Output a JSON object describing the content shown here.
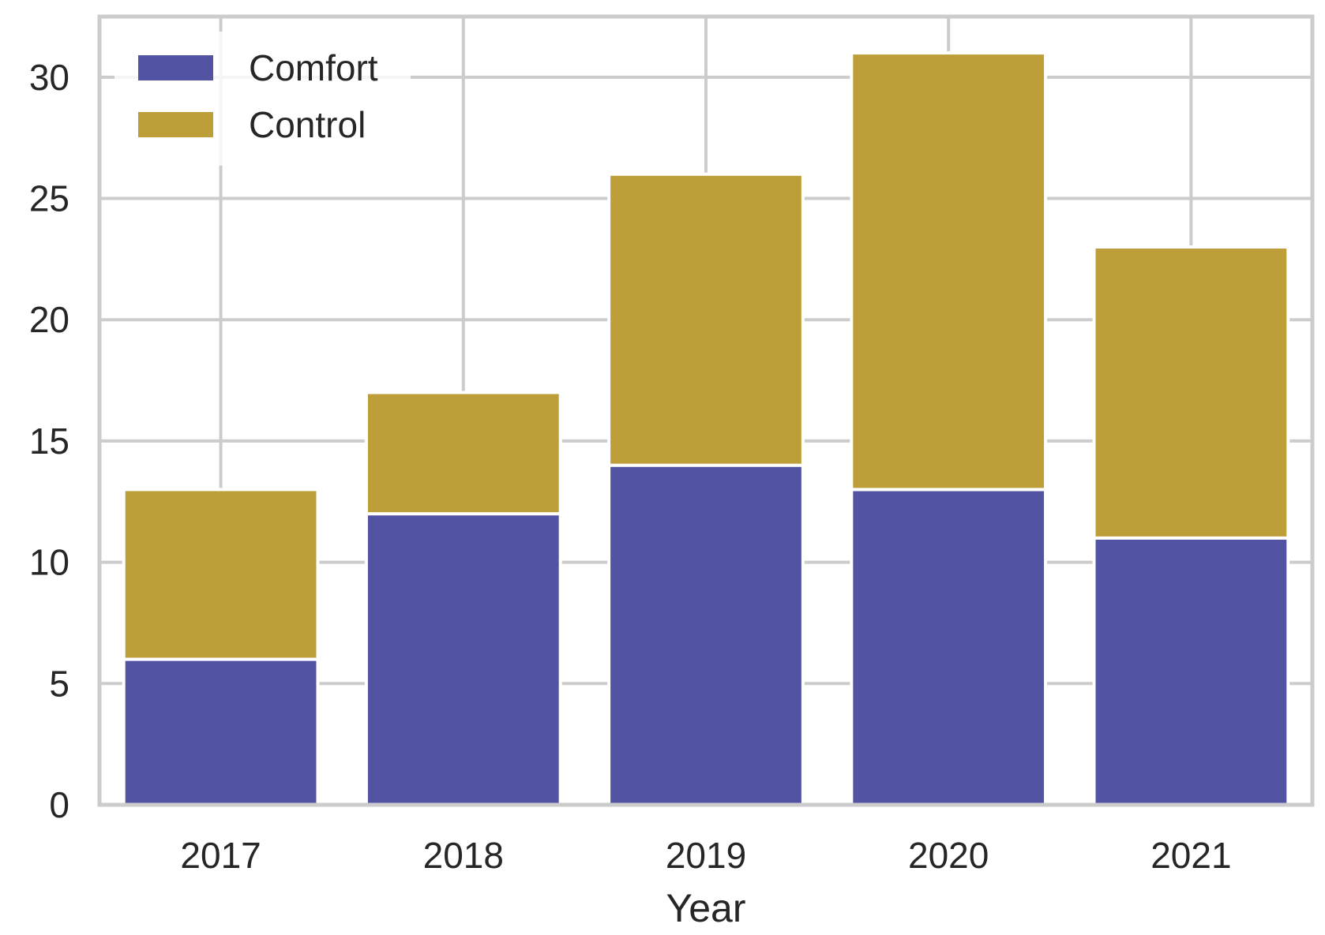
{
  "chart_data": {
    "type": "bar",
    "stacked": true,
    "categories": [
      "2017",
      "2018",
      "2019",
      "2020",
      "2021"
    ],
    "series": [
      {
        "name": "Comfort",
        "values": [
          6,
          12,
          14,
          13,
          11
        ],
        "color": "#5254a3"
      },
      {
        "name": "Control",
        "values": [
          7,
          5,
          12,
          18,
          12
        ],
        "color": "#bd9e39"
      }
    ],
    "xlabel": "Year",
    "ylabel": "",
    "ylim": [
      0,
      32.5
    ],
    "yticks": [
      0,
      5,
      10,
      15,
      20,
      25,
      30
    ],
    "grid": true,
    "grid_color": "#cccccc",
    "legend_position": "top-left"
  }
}
